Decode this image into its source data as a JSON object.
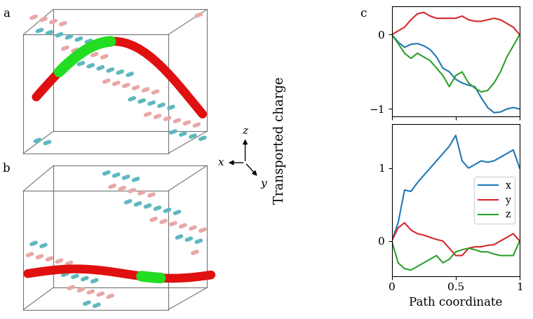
{
  "panel_labels": [
    "a",
    "b",
    "c"
  ],
  "compass": [
    "x",
    "y",
    "z"
  ],
  "ylabel": "Transported charge",
  "chart_data": [
    {
      "type": "line",
      "x": [
        0,
        0.05,
        0.1,
        0.15,
        0.2,
        0.25,
        0.3,
        0.35,
        0.4,
        0.45,
        0.5,
        0.55,
        0.6,
        0.65,
        0.7,
        0.75,
        0.8,
        0.85,
        0.9,
        0.95,
        1
      ],
      "xlim": [
        0,
        1
      ],
      "xticks": [
        0,
        0.5,
        1
      ],
      "ylim": [
        -1.1,
        0.38
      ],
      "yticks": [
        {
          "value": -1,
          "label": "−1"
        },
        0
      ],
      "tick_labels": "y",
      "series": [
        {
          "name": "x",
          "color": "#1f77b4",
          "values": [
            0,
            -0.1,
            -0.17,
            -0.13,
            -0.12,
            -0.15,
            -0.2,
            -0.3,
            -0.45,
            -0.5,
            -0.6,
            -0.65,
            -0.68,
            -0.7,
            -0.85,
            -0.98,
            -1.05,
            -1.04,
            -1.0,
            -0.98,
            -1.0
          ]
        },
        {
          "name": "y",
          "color": "#d62728",
          "values": [
            0,
            0.05,
            0.1,
            0.2,
            0.28,
            0.3,
            0.25,
            0.22,
            0.22,
            0.22,
            0.22,
            0.25,
            0.2,
            0.18,
            0.18,
            0.2,
            0.22,
            0.2,
            0.15,
            0.1,
            0
          ]
        },
        {
          "name": "z",
          "color": "#2ca02c",
          "values": [
            0,
            -0.12,
            -0.25,
            -0.32,
            -0.25,
            -0.3,
            -0.35,
            -0.45,
            -0.55,
            -0.7,
            -0.55,
            -0.5,
            -0.65,
            -0.72,
            -0.77,
            -0.75,
            -0.65,
            -0.5,
            -0.3,
            -0.15,
            0
          ]
        }
      ]
    },
    {
      "type": "line",
      "xlabel": "Path coordinate",
      "x": [
        0,
        0.05,
        0.1,
        0.15,
        0.2,
        0.25,
        0.3,
        0.35,
        0.4,
        0.45,
        0.5,
        0.55,
        0.6,
        0.65,
        0.7,
        0.75,
        0.8,
        0.85,
        0.9,
        0.95,
        1
      ],
      "xlim": [
        0,
        1
      ],
      "xticks": [
        0,
        0.5,
        1
      ],
      "ylim": [
        -0.48,
        1.6
      ],
      "yticks": [
        0,
        1
      ],
      "legend": "center right",
      "series": [
        {
          "name": "x",
          "color": "#1f77b4",
          "values": [
            0,
            0.25,
            0.7,
            0.68,
            0.8,
            0.9,
            1.0,
            1.1,
            1.2,
            1.3,
            1.45,
            1.1,
            1.0,
            1.05,
            1.1,
            1.08,
            1.1,
            1.15,
            1.2,
            1.25,
            1.0
          ]
        },
        {
          "name": "y",
          "color": "#d62728",
          "values": [
            0,
            0.18,
            0.25,
            0.15,
            0.1,
            0.08,
            0.05,
            0.02,
            0,
            -0.1,
            -0.2,
            -0.2,
            -0.1,
            -0.08,
            -0.08,
            -0.06,
            -0.05,
            0,
            0.05,
            0.1,
            0
          ]
        },
        {
          "name": "z",
          "color": "#2ca02c",
          "values": [
            0,
            -0.3,
            -0.38,
            -0.4,
            -0.35,
            -0.3,
            -0.25,
            -0.2,
            -0.3,
            -0.25,
            -0.15,
            -0.12,
            -0.1,
            -0.12,
            -0.15,
            -0.15,
            -0.18,
            -0.2,
            -0.2,
            -0.2,
            0
          ]
        }
      ]
    }
  ]
}
